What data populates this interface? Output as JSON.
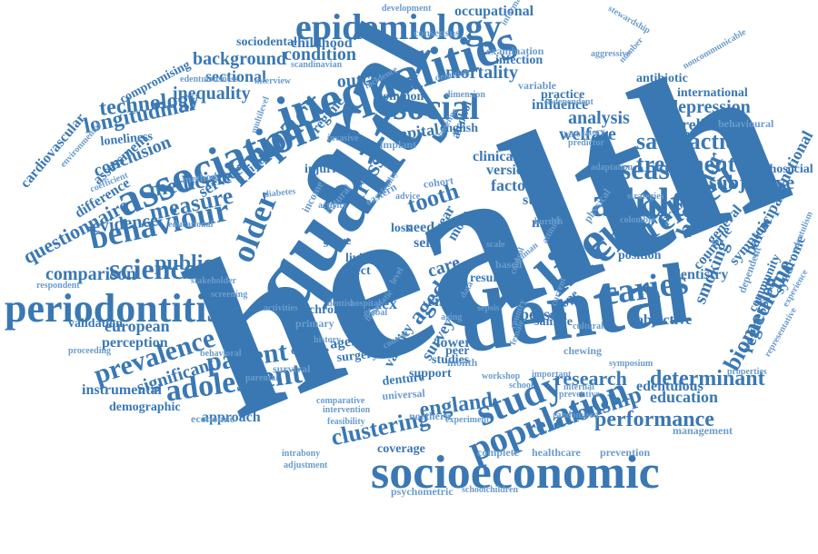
{
  "colors": {
    "primary": "#3a78b3",
    "light": "#6a9ccc",
    "background": "#ffffff"
  },
  "words": [
    {
      "text": "health",
      "weight": 10
    },
    {
      "text": "oral",
      "weight": 8
    },
    {
      "text": "dental",
      "weight": 7
    },
    {
      "text": "quality",
      "weight": 7
    },
    {
      "text": "socioeconomic",
      "weight": 6
    },
    {
      "text": "inequalities",
      "weight": 6
    },
    {
      "text": "association",
      "weight": 6
    },
    {
      "text": "life",
      "weight": 6
    },
    {
      "text": "epidemiology",
      "weight": 5
    },
    {
      "text": "periodontitis",
      "weight": 5
    },
    {
      "text": "impact",
      "weight": 5
    },
    {
      "text": "child",
      "weight": 5
    },
    {
      "text": "population",
      "weight": 5
    },
    {
      "text": "adult",
      "weight": 5
    },
    {
      "text": "social",
      "weight": 5
    },
    {
      "text": "study",
      "weight": 5
    },
    {
      "text": "older",
      "weight": 4
    },
    {
      "text": "behaviour",
      "weight": 4
    },
    {
      "text": "caries",
      "weight": 4
    },
    {
      "text": "related",
      "weight": 4
    },
    {
      "text": "adolescent",
      "weight": 4
    },
    {
      "text": "disease",
      "weight": 4
    },
    {
      "text": "patient",
      "weight": 4
    },
    {
      "text": "science",
      "weight": 4
    },
    {
      "text": "prevalence",
      "weight": 4
    },
    {
      "text": "measure",
      "weight": 4
    },
    {
      "text": "relationship",
      "weight": 4
    },
    {
      "text": "satisfaction",
      "weight": 3
    },
    {
      "text": "treatment",
      "weight": 3
    },
    {
      "text": "medicine",
      "weight": 3
    },
    {
      "text": "cross",
      "weight": 3
    },
    {
      "text": "tooth",
      "weight": 3
    },
    {
      "text": "clustering",
      "weight": 3
    },
    {
      "text": "england",
      "weight": 3
    },
    {
      "text": "determinant",
      "weight": 3
    },
    {
      "text": "performance",
      "weight": 3
    },
    {
      "text": "longitudinal",
      "weight": 3
    },
    {
      "text": "technology",
      "weight": 3
    },
    {
      "text": "inequality",
      "weight": 3
    },
    {
      "text": "background",
      "weight": 3
    },
    {
      "text": "condition",
      "weight": 3
    },
    {
      "text": "public",
      "weight": 3
    },
    {
      "text": "evidence",
      "weight": 3
    },
    {
      "text": "comparison",
      "weight": 3
    },
    {
      "text": "behavior",
      "weight": 3
    },
    {
      "text": "biomedicine",
      "weight": 3
    },
    {
      "text": "questionnaire",
      "weight": 3
    },
    {
      "text": "conclusion",
      "weight": 3
    },
    {
      "text": "sectional",
      "weight": 3
    },
    {
      "text": "outcome",
      "weight": 3
    },
    {
      "text": "mortality",
      "weight": 3
    },
    {
      "text": "research",
      "weight": 3
    },
    {
      "text": "analysis",
      "weight": 3
    },
    {
      "text": "welfare",
      "weight": 3
    },
    {
      "text": "capital",
      "weight": 3
    },
    {
      "text": "depression",
      "weight": 3
    },
    {
      "text": "reliability",
      "weight": 3
    },
    {
      "text": "subjective",
      "weight": 3
    },
    {
      "text": "european",
      "weight": 3
    },
    {
      "text": "aged",
      "weight": 3
    },
    {
      "text": "care",
      "weight": 3
    },
    {
      "text": "index",
      "weight": 3
    },
    {
      "text": "person",
      "weight": 3
    },
    {
      "text": "smoking",
      "weight": 3
    },
    {
      "text": "regression",
      "weight": 3
    },
    {
      "text": "education",
      "weight": 3
    },
    {
      "text": "service",
      "weight": 2
    },
    {
      "text": "significant",
      "weight": 2
    },
    {
      "text": "approach",
      "weight": 2
    },
    {
      "text": "perception",
      "weight": 2
    },
    {
      "text": "validation",
      "weight": 2
    },
    {
      "text": "instrumental",
      "weight": 2
    },
    {
      "text": "demographic",
      "weight": 2
    },
    {
      "text": "survey",
      "weight": 2
    },
    {
      "text": "studies",
      "weight": 2
    },
    {
      "text": "validity",
      "weight": 2
    },
    {
      "text": "result",
      "weight": 2
    },
    {
      "text": "risk",
      "weight": 2
    },
    {
      "text": "general",
      "weight": 2
    },
    {
      "text": "symptom",
      "weight": 2
    },
    {
      "text": "participant",
      "weight": 2
    },
    {
      "text": "syndrome",
      "weight": 2
    },
    {
      "text": "community",
      "weight": 2
    },
    {
      "text": "functional",
      "weight": 2
    },
    {
      "text": "psychosocial",
      "weight": 2
    },
    {
      "text": "dentistry",
      "weight": 2
    },
    {
      "text": "countrie",
      "weight": 2
    },
    {
      "text": "problem",
      "weight": 2
    },
    {
      "text": "position",
      "weight": 2
    },
    {
      "text": "model",
      "weight": 2
    },
    {
      "text": "status",
      "weight": 2
    },
    {
      "text": "factor",
      "weight": 2
    },
    {
      "text": "version",
      "weight": 2
    },
    {
      "text": "clinical",
      "weight": 2
    },
    {
      "text": "influence",
      "weight": 2
    },
    {
      "text": "practice",
      "weight": 2
    },
    {
      "text": "infection",
      "weight": 2
    },
    {
      "text": "examination",
      "weight": 2
    },
    {
      "text": "variable",
      "weight": 2
    },
    {
      "text": "antibiotic",
      "weight": 2
    },
    {
      "text": "aggressive",
      "weight": 1
    },
    {
      "text": "international",
      "weight": 2
    },
    {
      "text": "noncommunicable",
      "weight": 1
    },
    {
      "text": "behavioural",
      "weight": 2
    },
    {
      "text": "childhood",
      "weight": 2
    },
    {
      "text": "sociodental",
      "weight": 2
    },
    {
      "text": "consensus",
      "weight": 2
    },
    {
      "text": "occupational",
      "weight": 2
    },
    {
      "text": "development",
      "weight": 1
    },
    {
      "text": "stewardship",
      "weight": 1
    },
    {
      "text": "compromising",
      "weight": 2
    },
    {
      "text": "edentulousness",
      "weight": 1
    },
    {
      "text": "interview",
      "weight": 1
    },
    {
      "text": "loneliness",
      "weight": 2
    },
    {
      "text": "coefficient",
      "weight": 1
    },
    {
      "text": "environmental",
      "weight": 1
    },
    {
      "text": "difference",
      "weight": 2
    },
    {
      "text": "assessment",
      "weight": 2
    },
    {
      "text": "cardiovascular",
      "weight": 2
    },
    {
      "text": "respondent",
      "weight": 1
    },
    {
      "text": "method",
      "weight": 2
    },
    {
      "text": "finding",
      "weight": 2
    },
    {
      "text": "injuries",
      "weight": 2
    },
    {
      "text": "implant",
      "weight": 2
    },
    {
      "text": "english",
      "weight": 2
    },
    {
      "text": "regime",
      "weight": 2
    },
    {
      "text": "common",
      "weight": 2
    },
    {
      "text": "alcohol",
      "weight": 2
    },
    {
      "text": "chewing",
      "weight": 2
    },
    {
      "text": "sample",
      "weight": 2
    },
    {
      "text": "europe",
      "weight": 2
    },
    {
      "text": "objective",
      "weight": 2
    },
    {
      "text": "dependent",
      "weight": 1
    },
    {
      "text": "experience",
      "weight": 1
    },
    {
      "text": "representative",
      "weight": 1
    },
    {
      "text": "properties",
      "weight": 1
    },
    {
      "text": "edentulism",
      "weight": 1
    },
    {
      "text": "chronic",
      "weight": 2
    },
    {
      "text": "primary",
      "weight": 1
    },
    {
      "text": "change",
      "weight": 2
    },
    {
      "text": "ageing",
      "weight": 2
    },
    {
      "text": "surgery",
      "weight": 2
    },
    {
      "text": "denture",
      "weight": 2
    },
    {
      "text": "support",
      "weight": 2
    },
    {
      "text": "workshop",
      "weight": 1
    },
    {
      "text": "internal",
      "weight": 1
    },
    {
      "text": "edentulous",
      "weight": 2
    },
    {
      "text": "management",
      "weight": 1
    },
    {
      "text": "randomised",
      "weight": 1
    },
    {
      "text": "northern",
      "weight": 1
    },
    {
      "text": "feasibility",
      "weight": 1
    },
    {
      "text": "economic",
      "weight": 1
    },
    {
      "text": "survival",
      "weight": 1
    },
    {
      "text": "parental",
      "weight": 1
    },
    {
      "text": "intrabony",
      "weight": 1
    },
    {
      "text": "adjustment",
      "weight": 1
    },
    {
      "text": "psychometric",
      "weight": 1
    },
    {
      "text": "schoolchildren",
      "weight": 1
    },
    {
      "text": "coverage",
      "weight": 2
    },
    {
      "text": "complete",
      "weight": 1
    },
    {
      "text": "healthcare",
      "weight": 1
    },
    {
      "text": "prevention",
      "weight": 1
    },
    {
      "text": "screening",
      "weight": 1
    },
    {
      "text": "proceeding",
      "weight": 1
    },
    {
      "text": "lower",
      "weight": 2
    },
    {
      "text": "living",
      "weight": 2
    },
    {
      "text": "effect",
      "weight": 2
    },
    {
      "text": "score",
      "weight": 2
    },
    {
      "text": "need",
      "weight": 2
    },
    {
      "text": "self",
      "weight": 2
    },
    {
      "text": "more",
      "weight": 2
    },
    {
      "text": "year",
      "weight": 2
    },
    {
      "text": "loss",
      "weight": 2
    },
    {
      "text": "income",
      "weight": 2
    },
    {
      "text": "natural",
      "weight": 1
    },
    {
      "text": "eastern",
      "weight": 1
    },
    {
      "text": "cohort",
      "weight": 1
    },
    {
      "text": "advice",
      "weight": 1
    },
    {
      "text": "dentist",
      "weight": 1
    },
    {
      "text": "level",
      "weight": 1
    },
    {
      "text": "based",
      "weight": 1
    },
    {
      "text": "human",
      "weight": 1
    },
    {
      "text": "group",
      "weight": 2
    },
    {
      "text": "colombia",
      "weight": 1
    },
    {
      "text": "cultural",
      "weight": 1
    },
    {
      "text": "country",
      "weight": 1
    },
    {
      "text": "current",
      "weight": 1
    },
    {
      "text": "control",
      "weight": 1
    },
    {
      "text": "aging",
      "weight": 1
    },
    {
      "text": "number",
      "weight": 1
    },
    {
      "text": "diabetes",
      "weight": 1
    },
    {
      "text": "multilevel",
      "weight": 1
    },
    {
      "text": "sepsis",
      "weight": 1
    },
    {
      "text": "data",
      "weight": 1
    },
    {
      "text": "scale",
      "weight": 1
    },
    {
      "text": "information",
      "weight": 1
    },
    {
      "text": "independent",
      "weight": 1
    },
    {
      "text": "scandinavian",
      "weight": 1
    },
    {
      "text": "invasive",
      "weight": 1
    },
    {
      "text": "dentition",
      "weight": 1
    },
    {
      "text": "predictor",
      "weight": 1
    },
    {
      "text": "laboratory",
      "weight": 1
    },
    {
      "text": "adaptation",
      "weight": 1
    },
    {
      "text": "traumatic",
      "weight": 1
    },
    {
      "text": "frailty",
      "weight": 1
    },
    {
      "text": "activities",
      "weight": 1
    },
    {
      "text": "stakeholder",
      "weight": 1
    },
    {
      "text": "educational",
      "weight": 1
    },
    {
      "text": "behavioral",
      "weight": 1
    },
    {
      "text": "symposium",
      "weight": 1
    },
    {
      "text": "important",
      "weight": 1
    },
    {
      "text": "experiment",
      "weight": 1
    },
    {
      "text": "preventive",
      "weight": 1
    },
    {
      "text": "physical",
      "weight": 1
    },
    {
      "text": "burden",
      "weight": 1
    },
    {
      "text": "global",
      "weight": 1
    },
    {
      "text": "history",
      "weight": 1
    },
    {
      "text": "activity",
      "weight": 1
    },
    {
      "text": "incidence",
      "weight": 1
    },
    {
      "text": "dimension",
      "weight": 1
    },
    {
      "text": "universal",
      "weight": 1
    },
    {
      "text": "intervention",
      "weight": 1
    },
    {
      "text": "comparative",
      "weight": 1
    },
    {
      "text": "strategies",
      "weight": 1
    },
    {
      "text": "peer",
      "weight": 1
    },
    {
      "text": "month",
      "weight": 1
    },
    {
      "text": "baseline",
      "weight": 1
    },
    {
      "text": "female",
      "weight": 1
    },
    {
      "text": "attitude",
      "weight": 1
    },
    {
      "text": "school",
      "weight": 1
    },
    {
      "text": "context",
      "weight": 1
    },
    {
      "text": "hospital",
      "weight": 1
    }
  ]
}
